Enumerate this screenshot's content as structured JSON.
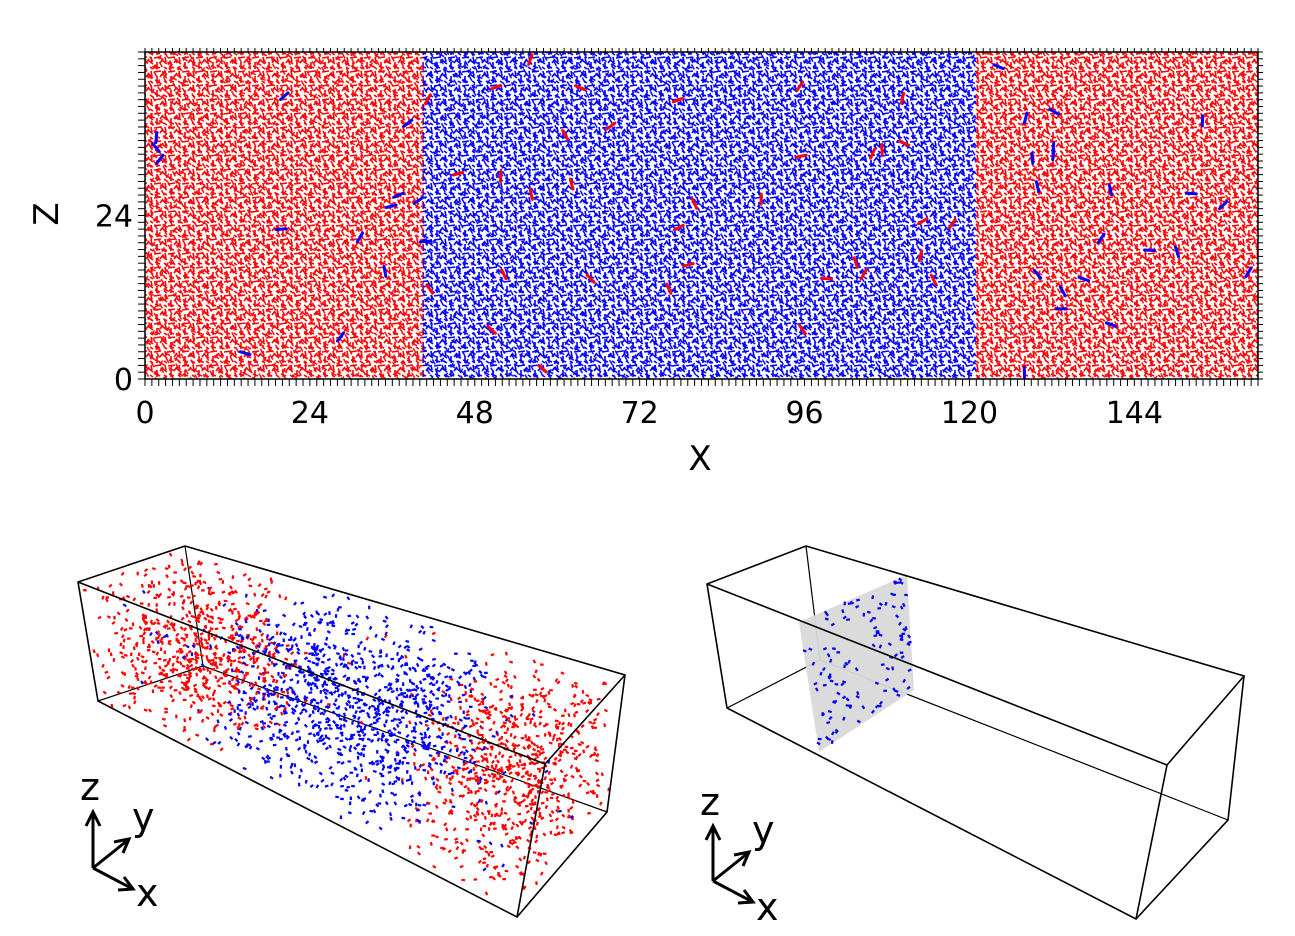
{
  "slice_panel": {
    "x_axis_label": "X",
    "z_axis_label": "Z",
    "x_ticks": [
      "0",
      "24",
      "48",
      "72",
      "96",
      "120",
      "144"
    ],
    "z_ticks": [
      "0",
      "24"
    ],
    "x_range": [
      0,
      162
    ],
    "z_range": [
      0,
      48
    ],
    "domain_boundaries_x": [
      41,
      121
    ],
    "colors": {
      "domain_a": "#ff0000",
      "domain_b": "#0000ff",
      "frame": "#000000"
    }
  },
  "box_full": {
    "axis_labels": {
      "z": "z",
      "y": "y",
      "x": "x"
    },
    "description_colors": {
      "red": "#ff0000",
      "blue": "#0000ff"
    }
  },
  "box_slice": {
    "axis_labels": {
      "z": "z",
      "y": "y",
      "x": "x"
    },
    "plane_color": "#d9d9d9",
    "point_color": "#0000ff"
  }
}
